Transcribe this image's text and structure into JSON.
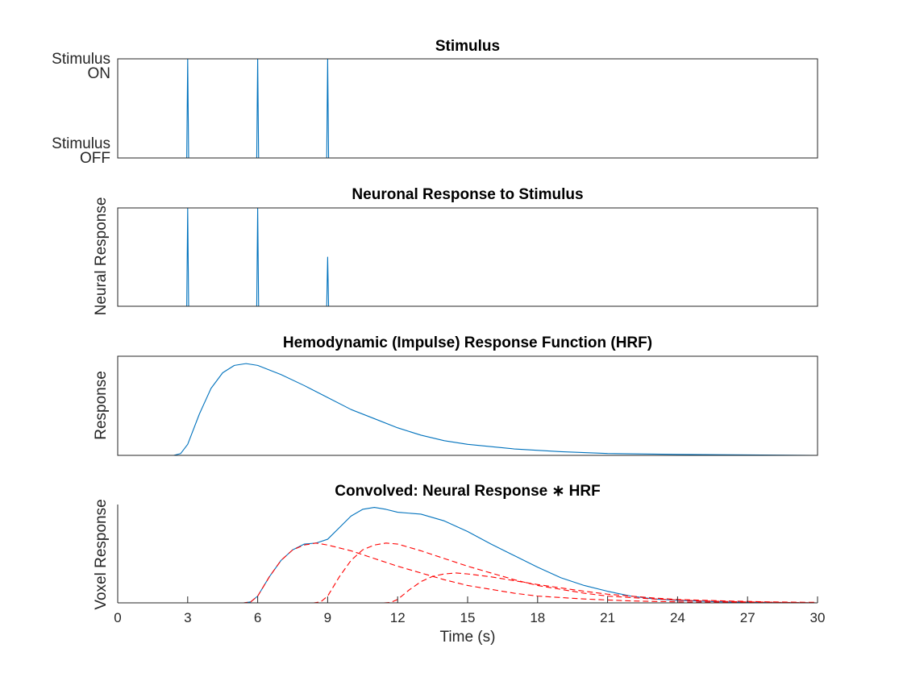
{
  "chart_data": [
    {
      "type": "line",
      "title": "Stimulus",
      "xlabel": "",
      "ylabel": "",
      "xlim": [
        0,
        30
      ],
      "ylim": [
        0,
        1
      ],
      "ytick_labels": [
        {
          "value": 1,
          "lines": [
            "Stimulus",
            "ON"
          ]
        },
        {
          "value": 0,
          "lines": [
            "Stimulus",
            "OFF"
          ]
        }
      ],
      "series": [
        {
          "color": "#0072BD",
          "spikes": [
            {
              "t": 3,
              "height": 1
            },
            {
              "t": 6,
              "height": 1
            },
            {
              "t": 9,
              "height": 1
            }
          ]
        }
      ]
    },
    {
      "type": "line",
      "title": "Neuronal Response to Stimulus",
      "xlabel": "",
      "ylabel": "Neural Response",
      "xlim": [
        0,
        30
      ],
      "ylim": [
        0,
        1
      ],
      "series": [
        {
          "color": "#0072BD",
          "spikes": [
            {
              "t": 3,
              "height": 1
            },
            {
              "t": 6,
              "height": 1
            },
            {
              "t": 9,
              "height": 0.5
            }
          ]
        }
      ]
    },
    {
      "type": "line",
      "title": "Hemodynamic (Impulse) Response Function (HRF)",
      "xlabel": "",
      "ylabel": "Response",
      "xlim": [
        0,
        30
      ],
      "ylim": [
        0,
        1.08
      ],
      "series": [
        {
          "color": "#0072BD",
          "x": [
            0,
            2.4,
            2.7,
            3,
            3.5,
            4,
            4.5,
            5,
            5.5,
            6,
            7,
            8,
            9,
            10,
            11,
            12,
            13,
            14,
            15,
            17,
            19,
            21,
            24,
            27,
            30
          ],
          "y": [
            0,
            0,
            0.02,
            0.12,
            0.45,
            0.73,
            0.9,
            0.98,
            1.0,
            0.98,
            0.88,
            0.76,
            0.63,
            0.5,
            0.4,
            0.3,
            0.22,
            0.16,
            0.12,
            0.07,
            0.04,
            0.02,
            0.01,
            0.005,
            0
          ]
        }
      ]
    },
    {
      "type": "line",
      "title": "Convolved: Neural Response ∗ HRF",
      "xlabel": "Time (s)",
      "ylabel": "Voxel Response",
      "xlim": [
        0,
        30
      ],
      "ylim": [
        0,
        1.02
      ],
      "xticks": [
        0,
        3,
        6,
        9,
        12,
        15,
        18,
        21,
        24,
        27,
        30
      ],
      "series": [
        {
          "color": "#0072BD",
          "style": "solid",
          "x": [
            0,
            5.4,
            5.7,
            6,
            6.5,
            7,
            7.5,
            8,
            8.5,
            9,
            9.5,
            10,
            10.5,
            11,
            11.5,
            12,
            13,
            14,
            15,
            16,
            17,
            18,
            19,
            20,
            21,
            22,
            23,
            24,
            26,
            28,
            30
          ],
          "y": [
            0,
            0,
            0.01,
            0.07,
            0.27,
            0.44,
            0.55,
            0.61,
            0.62,
            0.66,
            0.78,
            0.9,
            0.97,
            0.99,
            0.97,
            0.94,
            0.92,
            0.85,
            0.74,
            0.61,
            0.49,
            0.37,
            0.26,
            0.18,
            0.12,
            0.07,
            0.04,
            0.025,
            0.01,
            0.003,
            0
          ]
        },
        {
          "color": "#FF0000",
          "style": "dashed",
          "x": [
            0,
            5.4,
            5.7,
            6,
            6.5,
            7,
            7.5,
            8,
            8.5,
            9,
            10,
            11,
            12,
            13,
            14,
            15,
            16,
            17,
            18,
            20,
            22,
            24,
            26,
            28,
            30
          ],
          "y": [
            0,
            0,
            0.01,
            0.07,
            0.27,
            0.44,
            0.55,
            0.6,
            0.62,
            0.6,
            0.54,
            0.46,
            0.38,
            0.31,
            0.24,
            0.18,
            0.14,
            0.1,
            0.07,
            0.04,
            0.02,
            0.01,
            0.005,
            0.002,
            0
          ]
        },
        {
          "color": "#FF0000",
          "style": "dashed",
          "x": [
            0,
            8.4,
            8.7,
            9,
            9.5,
            10,
            10.5,
            11,
            11.5,
            12,
            13,
            14,
            15,
            16,
            17,
            18,
            19,
            20,
            21,
            23,
            25,
            27,
            30
          ],
          "y": [
            0,
            0,
            0.01,
            0.07,
            0.27,
            0.44,
            0.55,
            0.6,
            0.62,
            0.61,
            0.54,
            0.46,
            0.38,
            0.31,
            0.24,
            0.18,
            0.14,
            0.1,
            0.07,
            0.04,
            0.02,
            0.01,
            0
          ]
        },
        {
          "color": "#FF0000",
          "style": "dashed",
          "x": [
            0,
            11.4,
            11.7,
            12,
            12.5,
            13,
            13.5,
            14,
            14.5,
            15,
            16,
            17,
            18,
            19,
            20,
            21,
            22,
            23,
            24,
            26,
            28,
            30
          ],
          "y": [
            0,
            0,
            0.005,
            0.035,
            0.135,
            0.22,
            0.275,
            0.3,
            0.31,
            0.3,
            0.27,
            0.23,
            0.19,
            0.155,
            0.12,
            0.09,
            0.07,
            0.05,
            0.035,
            0.02,
            0.01,
            0.005
          ]
        }
      ]
    }
  ]
}
